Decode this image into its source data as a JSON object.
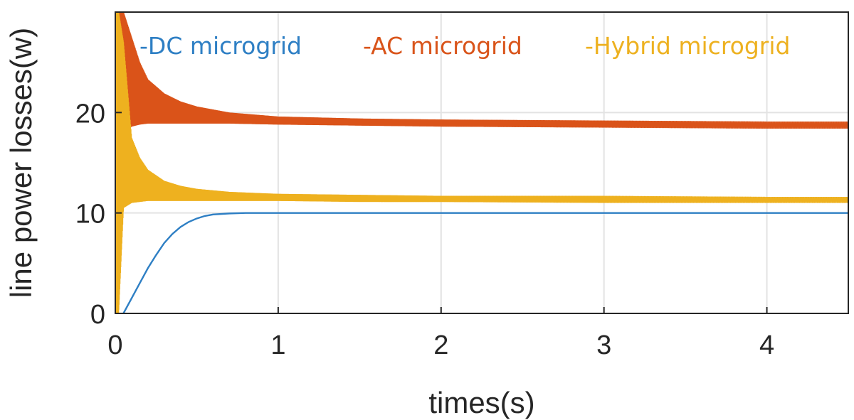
{
  "chart_data": {
    "type": "line",
    "title": "",
    "xlabel": "times(s)",
    "ylabel": "line power losses(w)",
    "xlim": [
      0,
      4.5
    ],
    "ylim": [
      0,
      30
    ],
    "xticks": [
      0,
      1,
      2,
      3,
      4
    ],
    "yticks": [
      0,
      10,
      20
    ],
    "xtick_labels": [
      "0",
      "1",
      "2",
      "3",
      "4"
    ],
    "ytick_labels": [
      "0",
      "10",
      "20"
    ],
    "grid": true,
    "legend_position": "top",
    "series": [
      {
        "name": "-DC microgrid",
        "color": "#2e7fc4",
        "style": "smooth",
        "x": [
          0.05,
          0.1,
          0.15,
          0.2,
          0.25,
          0.3,
          0.35,
          0.4,
          0.45,
          0.5,
          0.55,
          0.6,
          0.7,
          0.8,
          1.0,
          1.5,
          2.0,
          2.5,
          3.0,
          3.5,
          4.0,
          4.5
        ],
        "y": [
          0,
          1.5,
          3.0,
          4.5,
          5.8,
          7.0,
          7.9,
          8.6,
          9.1,
          9.45,
          9.7,
          9.85,
          9.95,
          10.0,
          10.0,
          10.0,
          10.0,
          10.0,
          10.0,
          10.0,
          10.0,
          10.0
        ]
      },
      {
        "name": "-AC microgrid",
        "color": "#d9541a",
        "style": "oscillating-band",
        "x": [
          0.02,
          0.05,
          0.1,
          0.15,
          0.2,
          0.3,
          0.4,
          0.5,
          0.7,
          1.0,
          1.5,
          2.0,
          3.0,
          4.0,
          4.5
        ],
        "upper": [
          30,
          30,
          27.5,
          25.0,
          23.3,
          21.9,
          21.1,
          20.6,
          20.0,
          19.6,
          19.4,
          19.3,
          19.2,
          19.1,
          19.1
        ],
        "lower": [
          8.5,
          18.0,
          18.6,
          18.8,
          18.9,
          18.9,
          18.9,
          18.9,
          18.9,
          18.8,
          18.7,
          18.6,
          18.5,
          18.4,
          18.4
        ]
      },
      {
        "name": "-Hybrid microgrid",
        "color": "#edb120",
        "style": "oscillating-band",
        "x": [
          0.0,
          0.02,
          0.05,
          0.1,
          0.15,
          0.2,
          0.3,
          0.4,
          0.5,
          0.7,
          1.0,
          1.5,
          2.0,
          3.0,
          4.0,
          4.5
        ],
        "upper": [
          30,
          30,
          27.0,
          17.5,
          15.5,
          14.3,
          13.2,
          12.7,
          12.4,
          12.1,
          11.9,
          11.8,
          11.7,
          11.7,
          11.6,
          11.6
        ],
        "lower": [
          0,
          0,
          10.5,
          11.0,
          11.1,
          11.2,
          11.2,
          11.2,
          11.2,
          11.2,
          11.2,
          11.1,
          11.1,
          11.0,
          11.0,
          11.0
        ]
      }
    ]
  }
}
